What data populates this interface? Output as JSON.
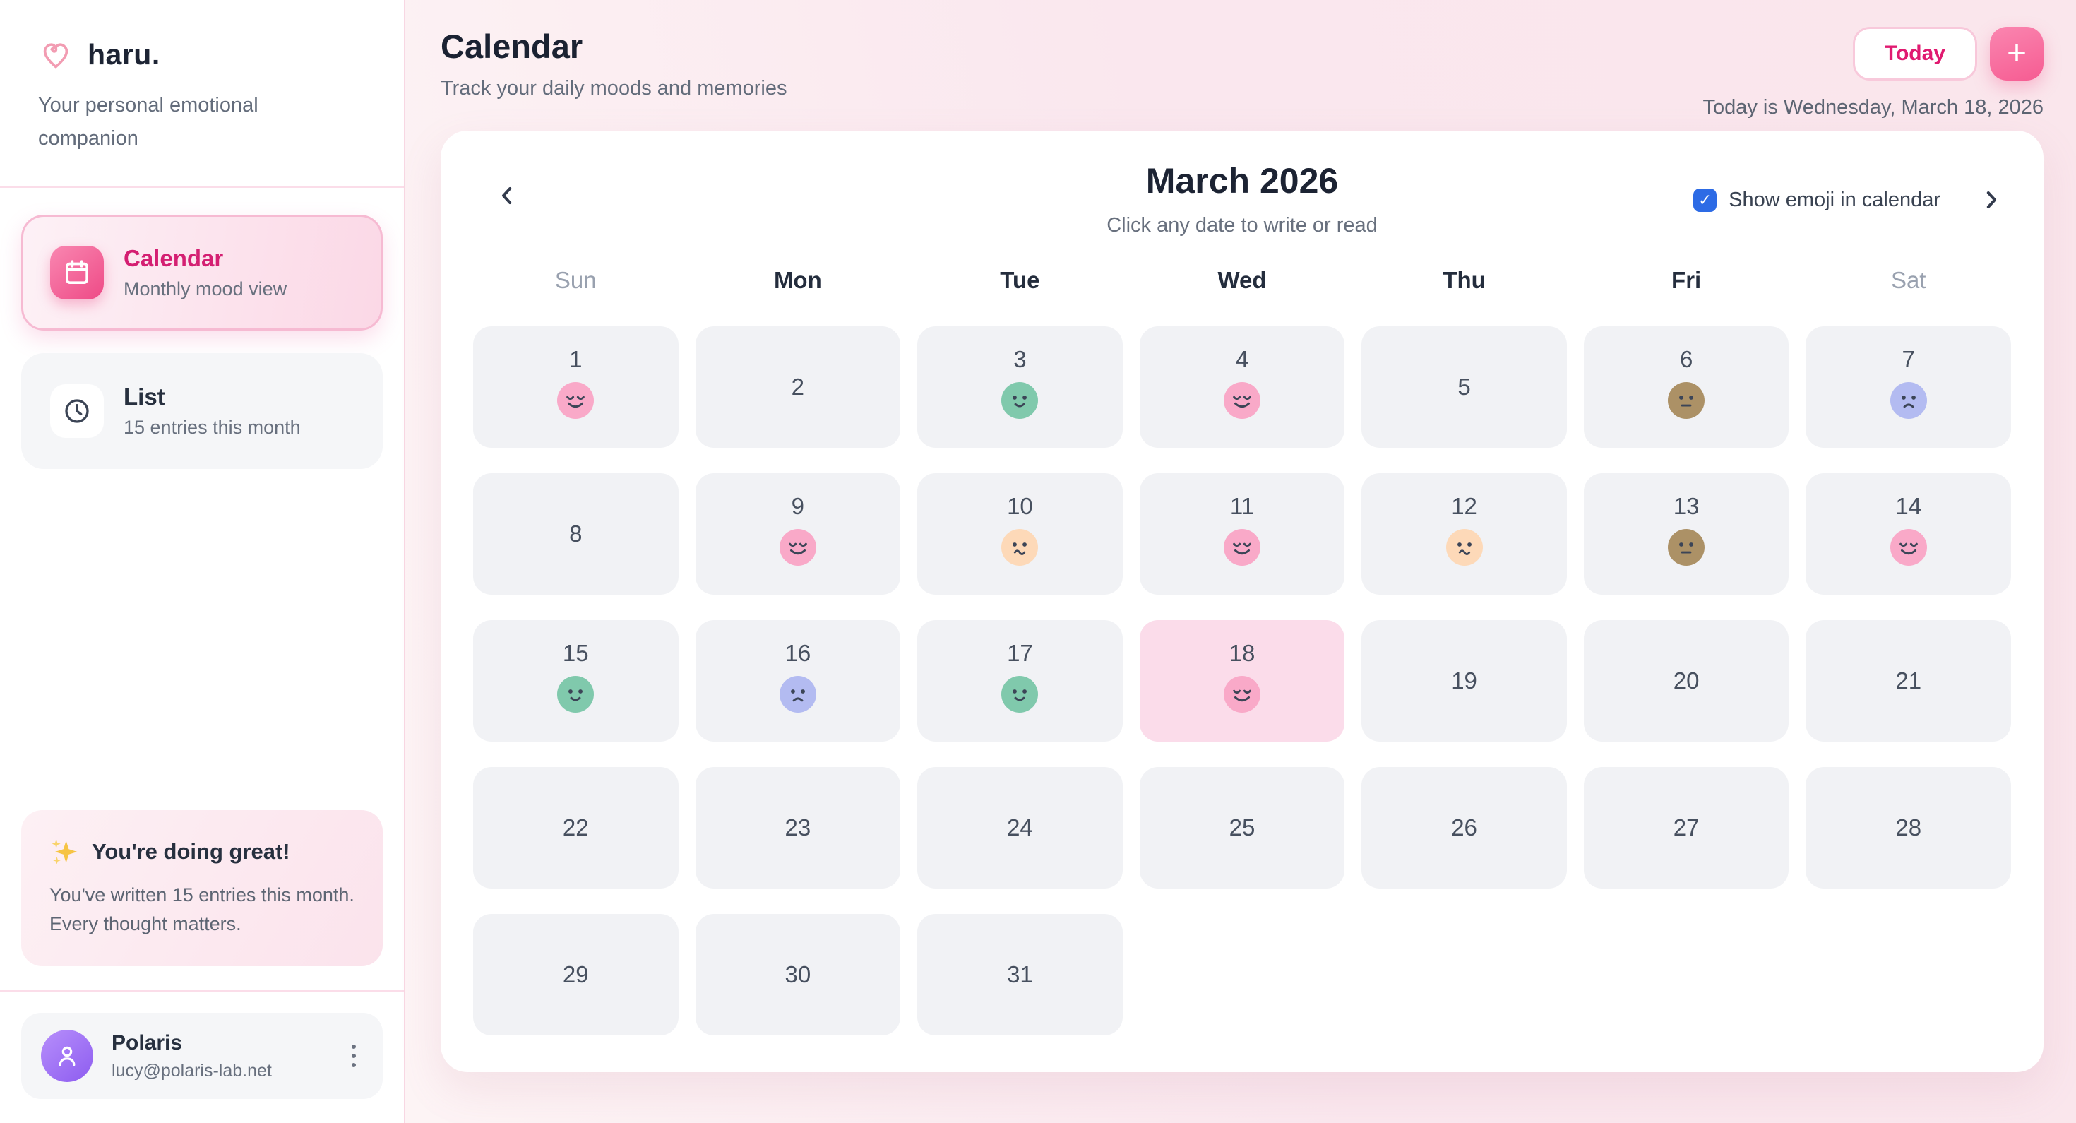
{
  "app": {
    "name": "haru.",
    "tagline": "Your personal emotional companion"
  },
  "sidebar": {
    "nav": [
      {
        "label": "Calendar",
        "sublabel": "Monthly mood view",
        "active": true
      },
      {
        "label": "List",
        "sublabel": "15 entries this month",
        "active": false
      }
    ],
    "encouragement": {
      "title": "You're doing great!",
      "body": "You've written 15 entries this month. Every thought matters."
    },
    "profile": {
      "name": "Polaris",
      "email": "lucy@polaris-lab.net"
    }
  },
  "header": {
    "title": "Calendar",
    "subtitle": "Track your daily moods and memories",
    "today_button": "Today",
    "add_button": "+",
    "date_line": "Today is Wednesday, March 18, 2026"
  },
  "calendar": {
    "month_title": "March 2026",
    "subtitle": "Click any date to write or read",
    "show_emoji_label": "Show emoji in calendar",
    "show_emoji_checked": true,
    "check_glyph": "✓",
    "weekdays": [
      "Sun",
      "Mon",
      "Tue",
      "Wed",
      "Thu",
      "Fri",
      "Sat"
    ],
    "weekend_indexes": [
      0,
      6
    ],
    "days_in_month": 31,
    "start_offset": 0,
    "today": 18,
    "moods": {
      "1": "happy",
      "3": "calm",
      "4": "happy",
      "6": "neutral",
      "7": "sad",
      "9": "happy",
      "10": "worried",
      "11": "happy",
      "12": "worried",
      "13": "neutral",
      "14": "happy",
      "15": "calm",
      "16": "sad",
      "17": "calm",
      "18": "happy"
    },
    "mood_colors": {
      "happy": "#f9a9c8",
      "calm": "#80c9ac",
      "worried": "#fdd9b8",
      "neutral": "#ac9166",
      "sad": "#b3bbf1"
    },
    "face_feature_color": "#3c4557"
  },
  "colors": {
    "accent_pink": "#e01a70",
    "today_cell": "#fbdcea",
    "cell_bg": "#f1f2f5",
    "checkbox_blue": "#2d6be5"
  }
}
